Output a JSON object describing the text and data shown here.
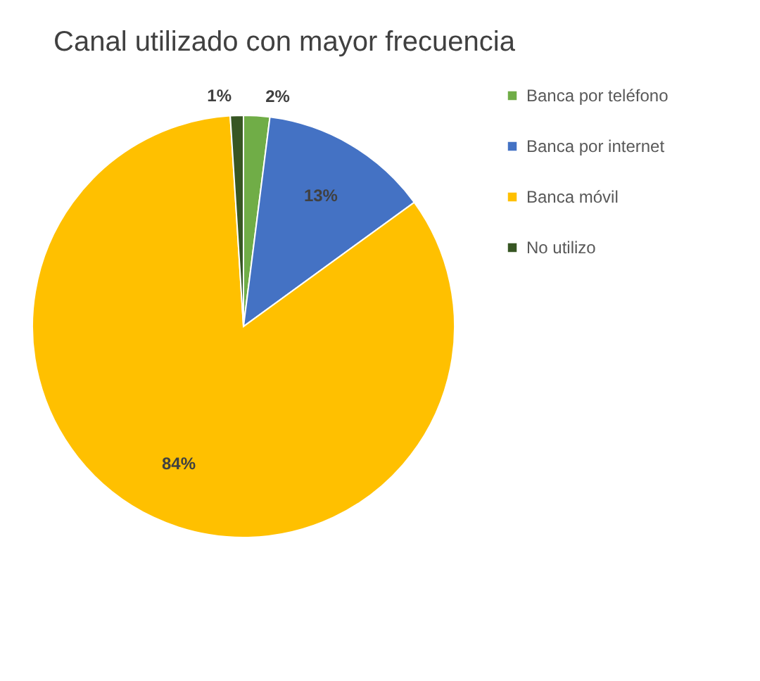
{
  "chart_data": {
    "type": "pie",
    "title": "Canal utilizado con mayor frecuencia",
    "categories": [
      "Banca por teléfono",
      "Banca por internet",
      "Banca móvil",
      "No utilizo"
    ],
    "values": [
      2,
      13,
      84,
      1
    ],
    "colors": [
      "#70ad47",
      "#4472c4",
      "#ffc000",
      "#375623"
    ],
    "value_labels": [
      "2%",
      "13%",
      "84%",
      "1%"
    ],
    "legend": "right"
  }
}
